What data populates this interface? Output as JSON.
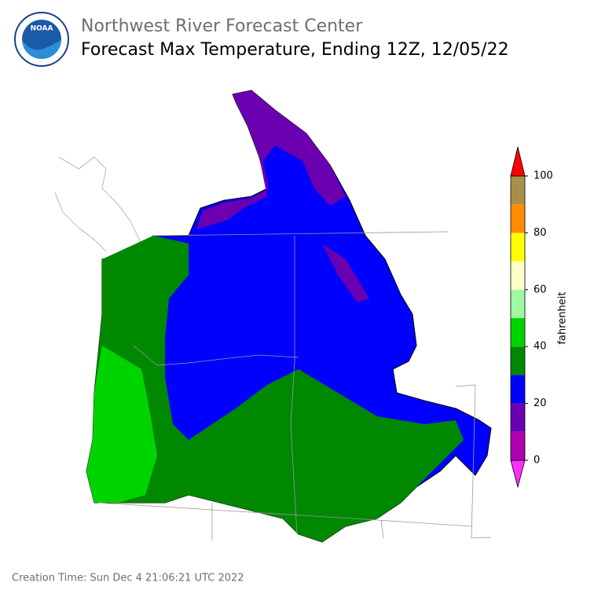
{
  "header": {
    "logo_text": "NOAA",
    "agency": "Northwest River Forecast Center",
    "title": "Forecast Max Temperature, Ending 12Z, 12/05/22"
  },
  "colorbar": {
    "label": "fahrenheit",
    "ticks": [
      0,
      20,
      40,
      60,
      80,
      100
    ],
    "levels": [
      0,
      10,
      20,
      30,
      40,
      50,
      60,
      70,
      80,
      90,
      100
    ],
    "colors": [
      "#b000b0",
      "#6a00b0",
      "#0000ff",
      "#008800",
      "#00d400",
      "#a0f8a0",
      "#ffffc8",
      "#ffff00",
      "#ff8c00",
      "#a8904c"
    ],
    "under_color": "#ff30ff",
    "over_color": "#ff0000"
  },
  "footer": "Creation Time: Sun Dec 4 21:06:21 UTC 2022"
}
